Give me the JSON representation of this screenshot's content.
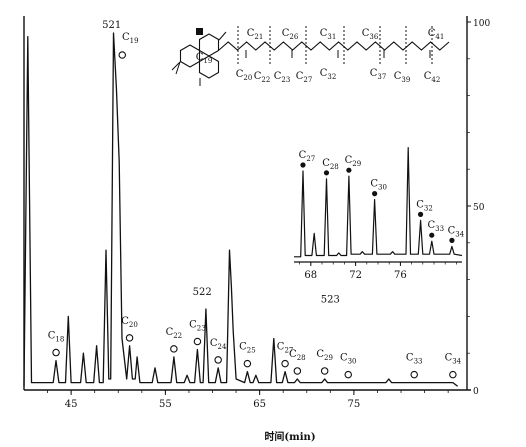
{
  "chart_data": {
    "type": "line",
    "title": "",
    "xlabel": "时间(min)",
    "ylabel": "",
    "xlim": [
      40,
      87
    ],
    "ylim": [
      0,
      100
    ],
    "x_ticks": [
      "45",
      "55",
      "65",
      "75"
    ],
    "y_ticks": [
      "100",
      "50",
      "0"
    ],
    "grid": false,
    "legend": "none",
    "main_trace": [
      [
        40.0,
        1
      ],
      [
        40.4,
        96
      ],
      [
        40.8,
        2
      ],
      [
        42,
        2
      ],
      [
        43.1,
        2
      ],
      [
        43.4,
        8
      ],
      [
        43.7,
        2
      ],
      [
        44.4,
        2
      ],
      [
        44.7,
        20
      ],
      [
        45.0,
        2
      ],
      [
        46.0,
        2
      ],
      [
        46.3,
        10
      ],
      [
        46.6,
        2
      ],
      [
        47.4,
        2
      ],
      [
        47.7,
        12
      ],
      [
        48.0,
        2
      ],
      [
        48.4,
        2
      ],
      [
        48.7,
        38
      ],
      [
        49.0,
        3
      ],
      [
        49.2,
        3
      ],
      [
        49.5,
        97
      ],
      [
        49.8,
        82
      ],
      [
        50.1,
        62
      ],
      [
        50.4,
        14
      ],
      [
        50.9,
        3
      ],
      [
        51.2,
        12
      ],
      [
        51.5,
        3
      ],
      [
        51.8,
        3
      ],
      [
        52.0,
        9
      ],
      [
        52.3,
        2
      ],
      [
        53.6,
        2
      ],
      [
        53.9,
        6
      ],
      [
        54.2,
        2
      ],
      [
        55.6,
        2
      ],
      [
        55.9,
        9
      ],
      [
        56.2,
        2
      ],
      [
        57.0,
        2
      ],
      [
        57.3,
        4
      ],
      [
        57.6,
        2
      ],
      [
        58.1,
        2
      ],
      [
        58.4,
        11
      ],
      [
        58.7,
        2
      ],
      [
        59.0,
        2
      ],
      [
        59.3,
        22
      ],
      [
        59.6,
        2
      ],
      [
        60.3,
        2
      ],
      [
        60.6,
        6
      ],
      [
        60.9,
        2
      ],
      [
        61.5,
        2
      ],
      [
        61.8,
        38
      ],
      [
        62.0,
        28
      ],
      [
        62.2,
        16
      ],
      [
        62.5,
        3
      ],
      [
        63.4,
        2
      ],
      [
        63.7,
        5
      ],
      [
        64.0,
        2
      ],
      [
        64.3,
        2
      ],
      [
        64.6,
        4
      ],
      [
        64.9,
        2
      ],
      [
        66.2,
        2
      ],
      [
        66.5,
        14
      ],
      [
        66.8,
        2
      ],
      [
        67.4,
        2
      ],
      [
        67.7,
        5
      ],
      [
        68.0,
        2
      ],
      [
        68.7,
        2
      ],
      [
        69.0,
        3
      ],
      [
        69.3,
        2
      ],
      [
        71.6,
        2
      ],
      [
        71.9,
        3
      ],
      [
        72.2,
        2
      ],
      [
        74.1,
        2
      ],
      [
        74.4,
        2
      ],
      [
        76.4,
        2
      ],
      [
        76.7,
        2
      ],
      [
        78.4,
        2
      ],
      [
        78.7,
        3
      ],
      [
        79.0,
        2
      ],
      [
        81.1,
        2
      ],
      [
        81.4,
        2
      ],
      [
        83.0,
        2
      ],
      [
        83.3,
        2
      ],
      [
        85.5,
        2
      ],
      [
        86.0,
        1
      ]
    ],
    "peak_labels": [
      {
        "name": "C18",
        "x": 43.4,
        "y": 8
      },
      {
        "name": "C20",
        "x": 51.2,
        "y": 12
      },
      {
        "name": "C22",
        "x": 55.9,
        "y": 9
      },
      {
        "name": "C23",
        "x": 58.4,
        "y": 11
      },
      {
        "name": "C24",
        "x": 60.6,
        "y": 6
      },
      {
        "name": "C25",
        "x": 63.7,
        "y": 5
      },
      {
        "name": "C27",
        "x": 67.7,
        "y": 5
      },
      {
        "name": "C28",
        "x": 69.0,
        "y": 3
      },
      {
        "name": "C29",
        "x": 71.9,
        "y": 3
      },
      {
        "name": "C30",
        "x": 74.4,
        "y": 2
      },
      {
        "name": "C33",
        "x": 81.4,
        "y": 2
      },
      {
        "name": "C34",
        "x": 85.5,
        "y": 2
      }
    ],
    "annotations": [
      {
        "text": "521",
        "x": 49.3,
        "y": 98
      },
      {
        "text": "C19",
        "x": 50.0,
        "y": 98
      },
      {
        "text": "522",
        "x": 58.9,
        "y": 22
      },
      {
        "text": "523",
        "x": 72.5,
        "y": 20
      }
    ],
    "inset": {
      "type": "line",
      "xlim": [
        66.5,
        81.5
      ],
      "x_ticks": [
        "68",
        "72",
        "76"
      ],
      "trace": [
        [
          66.5,
          4
        ],
        [
          67.1,
          4
        ],
        [
          67.3,
          70
        ],
        [
          67.5,
          5
        ],
        [
          68.1,
          5
        ],
        [
          68.3,
          22
        ],
        [
          68.5,
          5
        ],
        [
          69.2,
          5
        ],
        [
          69.4,
          64
        ],
        [
          69.6,
          5
        ],
        [
          70.3,
          5
        ],
        [
          70.5,
          7
        ],
        [
          70.7,
          5
        ],
        [
          71.2,
          5
        ],
        [
          71.4,
          66
        ],
        [
          71.6,
          6
        ],
        [
          72.4,
          6
        ],
        [
          72.6,
          8
        ],
        [
          72.8,
          6
        ],
        [
          73.5,
          6
        ],
        [
          73.7,
          48
        ],
        [
          73.9,
          6
        ],
        [
          75.1,
          6
        ],
        [
          75.3,
          8
        ],
        [
          75.5,
          6
        ],
        [
          76.5,
          6
        ],
        [
          76.7,
          88
        ],
        [
          76.9,
          6
        ],
        [
          77.6,
          6
        ],
        [
          77.8,
          32
        ],
        [
          78.0,
          6
        ],
        [
          78.6,
          6
        ],
        [
          78.8,
          16
        ],
        [
          79.0,
          6
        ],
        [
          80.4,
          6
        ],
        [
          80.6,
          12
        ],
        [
          80.8,
          6
        ],
        [
          81.5,
          5
        ]
      ],
      "peak_labels": [
        {
          "name": "C27",
          "x": 67.3,
          "y": 70
        },
        {
          "name": "C28",
          "x": 69.4,
          "y": 64
        },
        {
          "name": "C29",
          "x": 71.4,
          "y": 66
        },
        {
          "name": "C30",
          "x": 73.7,
          "y": 48
        },
        {
          "name": "C32",
          "x": 77.8,
          "y": 32
        },
        {
          "name": "C33",
          "x": 78.8,
          "y": 16
        },
        {
          "name": "C34",
          "x": 80.6,
          "y": 12
        }
      ]
    },
    "structure": {
      "labels": [
        "C19",
        "C20",
        "C21",
        "C22",
        "C23",
        "C26",
        "C27",
        "C31",
        "C32",
        "C36",
        "C37",
        "C39",
        "C41",
        "C42"
      ]
    }
  }
}
